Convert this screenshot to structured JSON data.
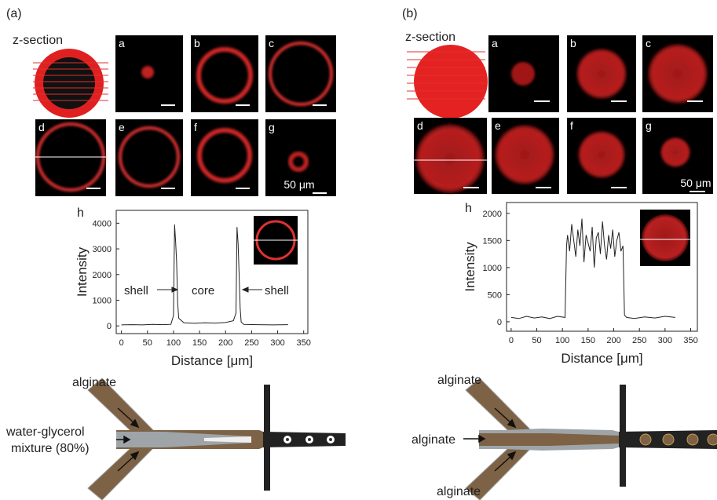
{
  "panel_a": {
    "label": "(a)",
    "z_section": "z-section",
    "images": [
      "a",
      "b",
      "c",
      "d",
      "e",
      "f",
      "g"
    ],
    "scale_bar": "50 μm"
  },
  "panel_b": {
    "label": "(b)",
    "z_section": "z-section",
    "images": [
      "a",
      "b",
      "c",
      "d",
      "e",
      "f",
      "g"
    ],
    "scale_bar": "50 μm"
  },
  "chart_data": [
    {
      "type": "line",
      "panel_label": "h",
      "xlabel": "Distance [μm]",
      "ylabel": "Intensity",
      "x": [
        0,
        20,
        40,
        60,
        80,
        95,
        100,
        102,
        104,
        106,
        108,
        110,
        120,
        140,
        160,
        180,
        200,
        215,
        220,
        222,
        224,
        226,
        228,
        230,
        235,
        260,
        290,
        320
      ],
      "values": [
        40,
        50,
        40,
        60,
        50,
        60,
        400,
        3950,
        3300,
        2500,
        900,
        300,
        120,
        100,
        120,
        110,
        130,
        200,
        500,
        3850,
        3200,
        2000,
        700,
        150,
        60,
        50,
        40,
        50
      ],
      "color": "#222222",
      "xlim": [
        -10,
        358
      ],
      "xticks": [
        0,
        50,
        100,
        150,
        200,
        250,
        300,
        350
      ],
      "ylim": [
        -300,
        4500
      ],
      "yticks": [
        0,
        1000,
        2000,
        3000,
        4000
      ],
      "annotations": [
        "shell",
        "core",
        "shell"
      ]
    },
    {
      "type": "line",
      "panel_label": "h",
      "xlabel": "Distance [μm]",
      "ylabel": "Intensity",
      "x": [
        0,
        15,
        30,
        45,
        60,
        75,
        90,
        105,
        108,
        110,
        114,
        118,
        122,
        126,
        130,
        134,
        138,
        142,
        146,
        150,
        154,
        158,
        162,
        166,
        170,
        174,
        178,
        182,
        186,
        190,
        194,
        198,
        202,
        206,
        210,
        214,
        218,
        221,
        225,
        240,
        260,
        280,
        300,
        320
      ],
      "values": [
        80,
        60,
        100,
        70,
        90,
        60,
        100,
        80,
        1400,
        1600,
        1300,
        1800,
        1500,
        1200,
        1700,
        1400,
        1900,
        1100,
        1600,
        1450,
        1300,
        1750,
        1000,
        1550,
        1650,
        1250,
        1850,
        1400,
        1150,
        1600,
        1350,
        1700,
        1200,
        1500,
        1650,
        1300,
        1400,
        120,
        80,
        60,
        90,
        70,
        100,
        80
      ],
      "color": "#222222",
      "xlim": [
        -9,
        363
      ],
      "xticks": [
        0,
        50,
        100,
        150,
        200,
        250,
        300,
        350
      ],
      "ylim": [
        -175,
        2200
      ],
      "yticks": [
        0,
        500,
        1000,
        1500,
        2000
      ]
    }
  ],
  "diagram_a": {
    "labels": [
      "alginate",
      "water-glycerol",
      "mixture (80%)"
    ]
  },
  "diagram_b": {
    "labels": [
      "alginate",
      "alginate",
      "alginate"
    ]
  }
}
